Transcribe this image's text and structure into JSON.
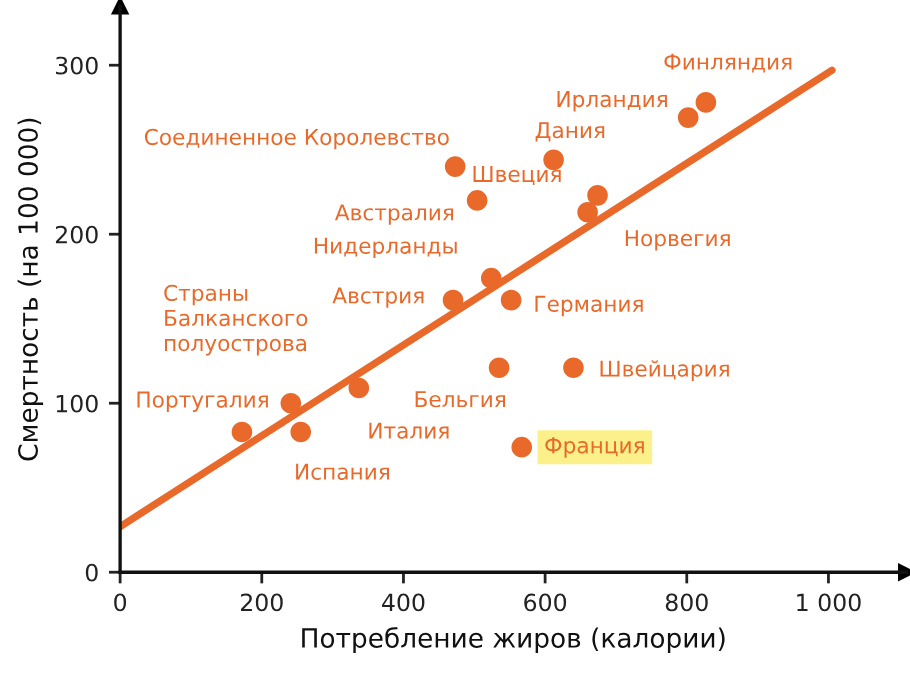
{
  "chart_data": {
    "type": "scatter",
    "xlabel": "Потребление жиров (калории)",
    "ylabel": "Смертность (на 100 000)",
    "xlim": [
      0,
      1110
    ],
    "ylim": [
      0,
      335
    ],
    "xticks": [
      0,
      200,
      400,
      600,
      800,
      {
        "value": 1000,
        "label": "1 000"
      }
    ],
    "yticks": [
      0,
      100,
      200,
      300
    ],
    "grid": false,
    "marker": "circle",
    "series": [
      {
        "type": "scatter",
        "color": "#e8692a",
        "x": [
          827,
          802,
          473,
          612,
          674,
          504,
          660,
          524,
          470,
          552,
          535,
          640,
          337,
          241,
          172,
          255,
          567
        ],
        "values": [
          278,
          269,
          240,
          244,
          223,
          220,
          213,
          174,
          161,
          161,
          121,
          121,
          109,
          100,
          83,
          83,
          74
        ]
      },
      {
        "type": "line",
        "color": "#e8692a",
        "x": [
          0,
          1005
        ],
        "values": [
          27,
          297
        ],
        "line_style": "solid",
        "marker": "none"
      }
    ],
    "annotations": [
      {
        "text": "Финляндия",
        "x": 827,
        "y": 278
      },
      {
        "text": "Ирландия",
        "x": 802,
        "y": 269
      },
      {
        "text": "Соединенное Королевство",
        "x": 473,
        "y": 240
      },
      {
        "text": "Дания",
        "x": 612,
        "y": 244
      },
      {
        "text": "Швеция",
        "x": 674,
        "y": 223
      },
      {
        "text": "Австралия",
        "x": 504,
        "y": 220
      },
      {
        "text": "Норвегия",
        "x": 660,
        "y": 213
      },
      {
        "text": "Нидерланды",
        "x": 524,
        "y": 174
      },
      {
        "text": "Австрия",
        "x": 470,
        "y": 161
      },
      {
        "text": "Германия",
        "x": 552,
        "y": 161
      },
      {
        "text": "Бельгия",
        "x": 535,
        "y": 121
      },
      {
        "text": "Швейцария",
        "x": 640,
        "y": 121
      },
      {
        "text": "Италия",
        "x": 337,
        "y": 109
      },
      {
        "text": "Страны\nБалканского\nполуострова",
        "x": 241,
        "y": 100
      },
      {
        "text": "Португалия",
        "x": 172,
        "y": 83
      },
      {
        "text": "Испания",
        "x": 255,
        "y": 83
      },
      {
        "text": "Франция",
        "x": 567,
        "y": 74
      }
    ]
  }
}
